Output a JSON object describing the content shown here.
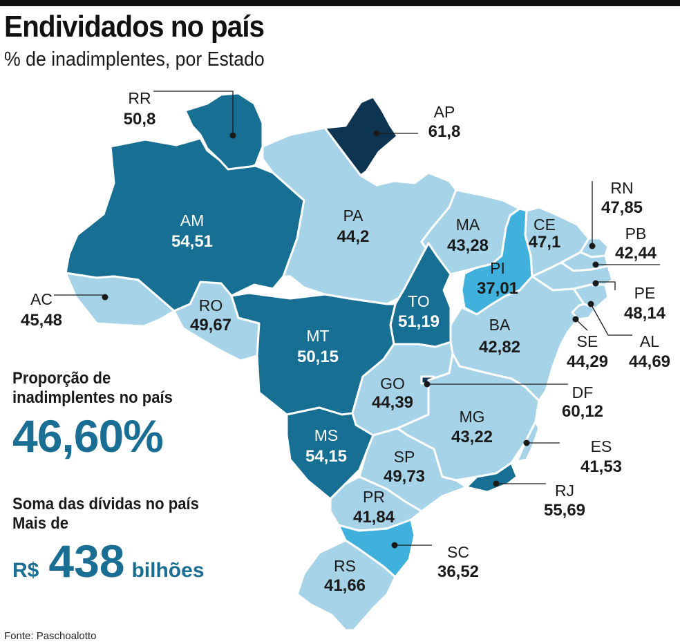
{
  "title": "Endividados no país",
  "subtitle": "% de inadimplentes, por Estado",
  "colors": {
    "darkest": "#0d3450",
    "dark": "#176f93",
    "medium": "#3fb1dc",
    "light": "#a6d3e8",
    "accent_text": "#1a6e94",
    "border": "#ffffff"
  },
  "states": [
    {
      "code": "RR",
      "value": "50,8"
    },
    {
      "code": "AP",
      "value": "61,8"
    },
    {
      "code": "AM",
      "value": "54,51"
    },
    {
      "code": "PA",
      "value": "44,2"
    },
    {
      "code": "MA",
      "value": "43,28"
    },
    {
      "code": "CE",
      "value": "47,1"
    },
    {
      "code": "RN",
      "value": "47,85"
    },
    {
      "code": "PB",
      "value": "42,44"
    },
    {
      "code": "PI",
      "value": "37,01"
    },
    {
      "code": "PE",
      "value": "48,14"
    },
    {
      "code": "AC",
      "value": "45,48"
    },
    {
      "code": "RO",
      "value": "49,67"
    },
    {
      "code": "TO",
      "value": "51,19"
    },
    {
      "code": "MT",
      "value": "50,15"
    },
    {
      "code": "BA",
      "value": "42,82"
    },
    {
      "code": "SE",
      "value": "44,29"
    },
    {
      "code": "AL",
      "value": "44,69"
    },
    {
      "code": "GO",
      "value": "44,39"
    },
    {
      "code": "DF",
      "value": "60,12"
    },
    {
      "code": "MG",
      "value": "43,22"
    },
    {
      "code": "MS",
      "value": "54,15"
    },
    {
      "code": "ES",
      "value": "41,53"
    },
    {
      "code": "SP",
      "value": "49,73"
    },
    {
      "code": "RJ",
      "value": "55,69"
    },
    {
      "code": "PR",
      "value": "41,84"
    },
    {
      "code": "SC",
      "value": "36,52"
    },
    {
      "code": "RS",
      "value": "41,66"
    }
  ],
  "proportion": {
    "label_line1": "Proporção de",
    "label_line2": "inadimplentes no país",
    "value": "46,60%"
  },
  "debt": {
    "label_line1": "Soma das dívidas no país",
    "label_line2": "Mais de",
    "currency": "R$",
    "amount": "438",
    "unit": "bilhões"
  },
  "source": "Fonte: Paschoalotto"
}
